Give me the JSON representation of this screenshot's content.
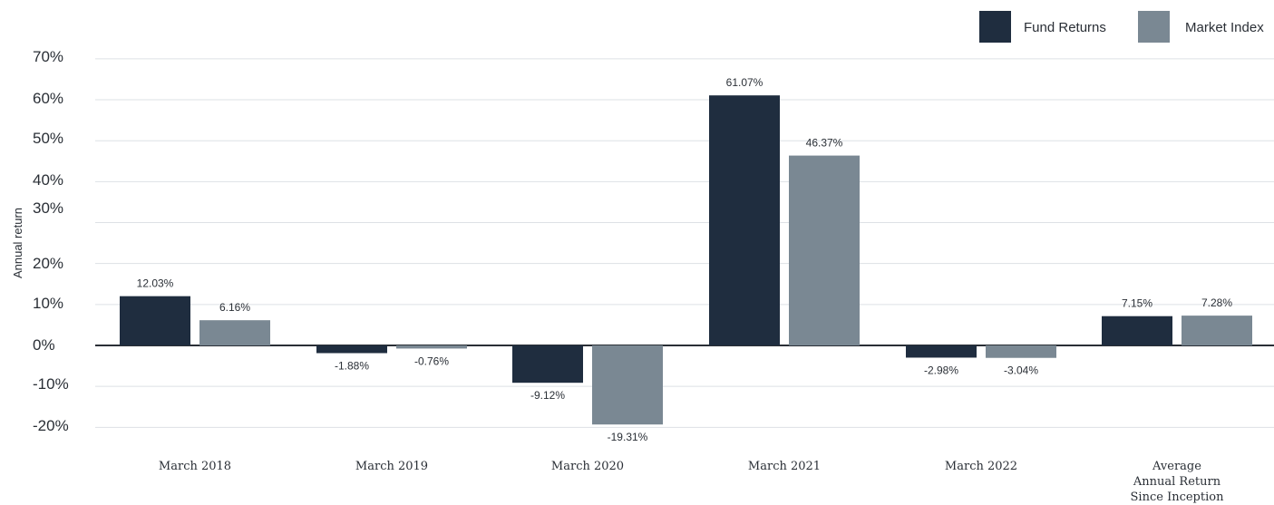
{
  "chart_data": {
    "type": "bar",
    "ylabel": "Annual return",
    "ylim": [
      -20,
      70
    ],
    "y_ticks": [
      "70%",
      "60%",
      "50%",
      "40%",
      "30%",
      "20%",
      "10%",
      "0%",
      "-10%",
      "-20%"
    ],
    "grid": true,
    "legend_position": "top-right",
    "categories": [
      [
        "March 2018"
      ],
      [
        "March 2019"
      ],
      [
        "March 2020"
      ],
      [
        "March 2021"
      ],
      [
        "March 2022"
      ],
      [
        "Average",
        "Annual Return",
        "Since Inception"
      ]
    ],
    "series": [
      {
        "name": "Fund Returns",
        "color": "#1f2d3f",
        "values": [
          12.03,
          -1.88,
          -9.12,
          61.07,
          -2.98,
          7.15
        ],
        "labels": [
          "12.03%",
          "-1.88%",
          "-9.12%",
          "61.07%",
          "-2.98%",
          "7.15%"
        ]
      },
      {
        "name": "Market Index",
        "color": "#7a8893",
        "values": [
          6.16,
          -0.76,
          -19.31,
          46.37,
          -3.04,
          7.28
        ],
        "labels": [
          "6.16%",
          "-0.76%",
          "-19.31%",
          "46.37%",
          "-3.04%",
          "7.28%"
        ]
      }
    ]
  }
}
